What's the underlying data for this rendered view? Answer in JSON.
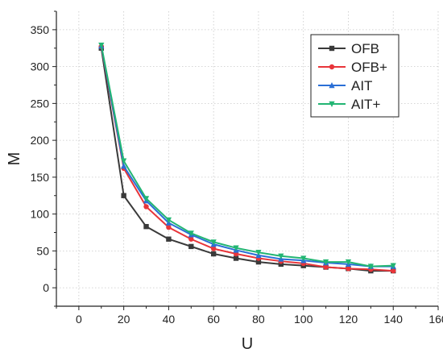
{
  "chart_data": {
    "type": "line",
    "title": "",
    "xlabel": "U",
    "ylabel": "M",
    "xlim": [
      -10,
      160
    ],
    "ylim": [
      -25,
      375
    ],
    "xticks": [
      0,
      20,
      40,
      60,
      80,
      100,
      120,
      140,
      160
    ],
    "yticks": [
      0,
      50,
      100,
      150,
      200,
      250,
      300,
      350
    ],
    "xtick_labels": [
      "0",
      "20",
      "40",
      "60",
      "80",
      "100",
      "120",
      "140",
      "160"
    ],
    "ytick_labels": [
      "0",
      "50",
      "100",
      "150",
      "200",
      "250",
      "300",
      "350"
    ],
    "grid": true,
    "legend_position": "top-right",
    "x": [
      10,
      20,
      30,
      40,
      50,
      60,
      70,
      80,
      90,
      100,
      110,
      120,
      130,
      140
    ],
    "series": [
      {
        "name": "OFB",
        "color": "#3a3a3a",
        "marker": "square",
        "values": [
          325,
          125,
          83,
          66,
          56,
          46,
          40,
          35,
          32,
          30,
          28,
          26,
          23,
          23
        ]
      },
      {
        "name": "OFB+",
        "color": "#e8353a",
        "marker": "circle",
        "values": [
          327,
          162,
          110,
          82,
          66,
          53,
          46,
          40,
          36,
          33,
          28,
          26,
          25,
          23
        ]
      },
      {
        "name": "AIT",
        "color": "#2a6fd6",
        "marker": "triangle-up",
        "values": [
          328,
          165,
          118,
          88,
          72,
          59,
          51,
          44,
          39,
          37,
          34,
          32,
          29,
          29
        ]
      },
      {
        "name": "AIT+",
        "color": "#22b573",
        "marker": "triangle-down",
        "values": [
          329,
          172,
          121,
          92,
          74,
          62,
          54,
          48,
          43,
          40,
          35,
          35,
          29,
          30
        ]
      }
    ]
  }
}
